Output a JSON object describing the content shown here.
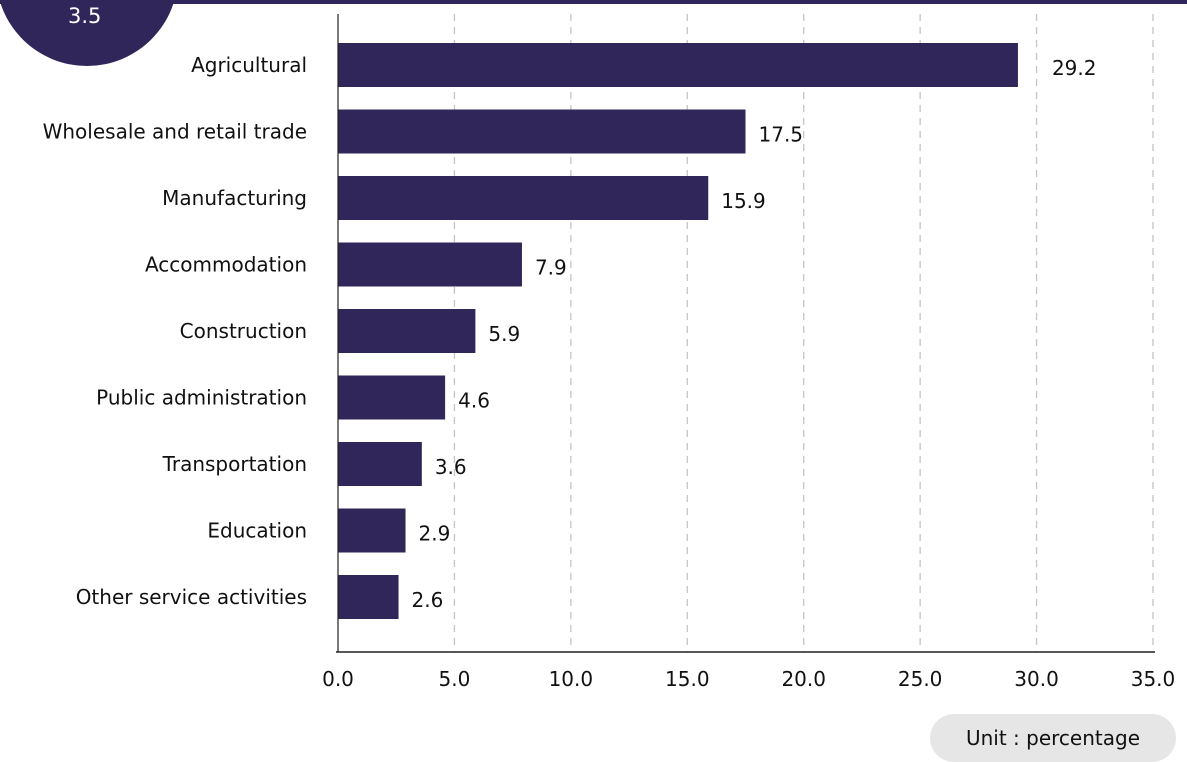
{
  "badge": {
    "text": "3.5"
  },
  "colors": {
    "accent": "#30265a",
    "grid": "#c4c4c4",
    "axis": "#222222",
    "text": "#111111"
  },
  "unit_note": "Unit : percentage",
  "chart_data": {
    "type": "bar",
    "orientation": "horizontal",
    "categories": [
      "Agricultural",
      "Wholesale and retail trade",
      "Manufacturing",
      "Accommodation",
      "Construction",
      "Public administration",
      "Transportation",
      "Education",
      "Other service activities"
    ],
    "values": [
      29.2,
      17.5,
      15.9,
      7.9,
      5.9,
      4.6,
      3.6,
      2.9,
      2.6
    ],
    "data_labels": [
      "29.2",
      "17.5",
      "15.9",
      "7.9",
      "5.9",
      "4.6",
      "3.6",
      "2.9",
      "2.6"
    ],
    "x_ticks": [
      "0.0",
      "5.0",
      "10.0",
      "15.0",
      "20.0",
      "25.0",
      "30.0",
      "35.0"
    ],
    "xlim": [
      0,
      35
    ],
    "grid": "vertical dashed",
    "legend": "none"
  }
}
